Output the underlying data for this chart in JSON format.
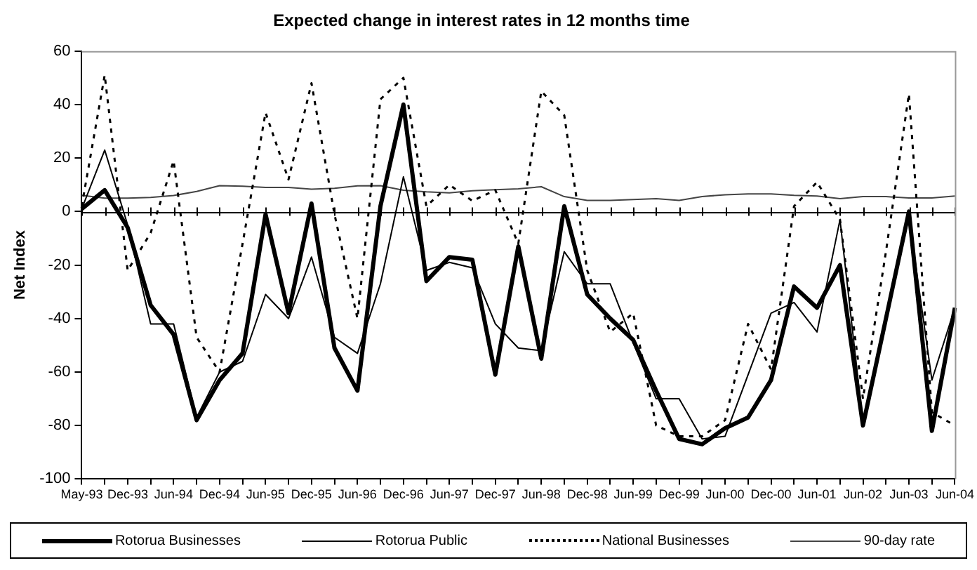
{
  "chart_data": {
    "type": "line",
    "title": "Expected change in interest rates in 12 months time",
    "ylabel": "Net Index",
    "categories": [
      "May-93",
      null,
      "Dec-93",
      null,
      "Jun-94",
      null,
      "Dec-94",
      null,
      "Jun-95",
      null,
      "Dec-95",
      null,
      "Jun-96",
      null,
      "Dec-96",
      null,
      "Jun-97",
      null,
      "Dec-97",
      null,
      "Jun-98",
      null,
      "Dec-98",
      null,
      "Jun-99",
      null,
      "Dec-99",
      null,
      "Jun-00",
      null,
      "Dec-00",
      null,
      "Jun-01",
      null,
      "Jun-02",
      null,
      "Jun-03",
      null,
      "Jun-04"
    ],
    "ylim": [
      -100,
      60
    ],
    "yticks": [
      -100,
      -80,
      -60,
      -40,
      -20,
      0,
      20,
      40,
      60
    ],
    "legend": "bottom",
    "marker": "none",
    "series": [
      {
        "name": "Rotorua Businesses",
        "color": "#000000",
        "line_style": "solid",
        "values": [
          1,
          8,
          -6,
          -35,
          -46,
          -78,
          -63,
          -53,
          -1,
          -38,
          3,
          -51,
          -67,
          2,
          40,
          -26,
          -17,
          -18,
          -61,
          -13,
          -55,
          2,
          -31,
          -40,
          -48,
          -67,
          -85,
          -87,
          -81,
          -77,
          -63,
          -28,
          -36,
          -20,
          -80,
          -40,
          0,
          -82,
          -36
        ]
      },
      {
        "name": "Rotorua Public",
        "color": "#000000",
        "line_style": "solid",
        "values": [
          1,
          23,
          -5,
          -42,
          -42,
          -77,
          -60,
          -56,
          -31,
          -40,
          -17,
          -47,
          -53,
          -27,
          13,
          -22,
          -19,
          -21,
          -42,
          -51,
          -52,
          -15,
          -27,
          -27,
          -49,
          -70,
          -70,
          -85,
          -84,
          -61,
          -38,
          -34,
          -45,
          -3,
          -79,
          -40,
          -2,
          -63,
          -36
        ]
      },
      {
        "name": "National Businesses",
        "color": "#000000",
        "line_style": "dotted",
        "values": [
          2,
          51,
          -22,
          -8,
          19,
          -47,
          -60,
          -12,
          37,
          12,
          48,
          -1,
          -40,
          42,
          50,
          2,
          10,
          4,
          8,
          -12,
          45,
          36,
          -22,
          -45,
          -38,
          -80,
          -84,
          -84,
          -78,
          -42,
          -59,
          2,
          11,
          -3,
          -70,
          -15,
          44,
          -75,
          -80
        ]
      },
      {
        "name": "90-day rate",
        "color": "#444444",
        "line_style": "solid",
        "values": [
          6.1,
          5,
          5,
          5.3,
          6,
          7.5,
          9.7,
          9.5,
          9,
          9,
          8.4,
          8.7,
          9.6,
          9.7,
          8,
          7.4,
          7,
          7.8,
          8.2,
          8.5,
          9.3,
          5.6,
          4.2,
          4.2,
          4.5,
          4.8,
          4.2,
          5.6,
          6.3,
          6.6,
          6.6,
          6.1,
          5.8,
          4.8,
          5.6,
          5.6,
          5.1,
          5.1,
          5.8
        ]
      }
    ]
  }
}
